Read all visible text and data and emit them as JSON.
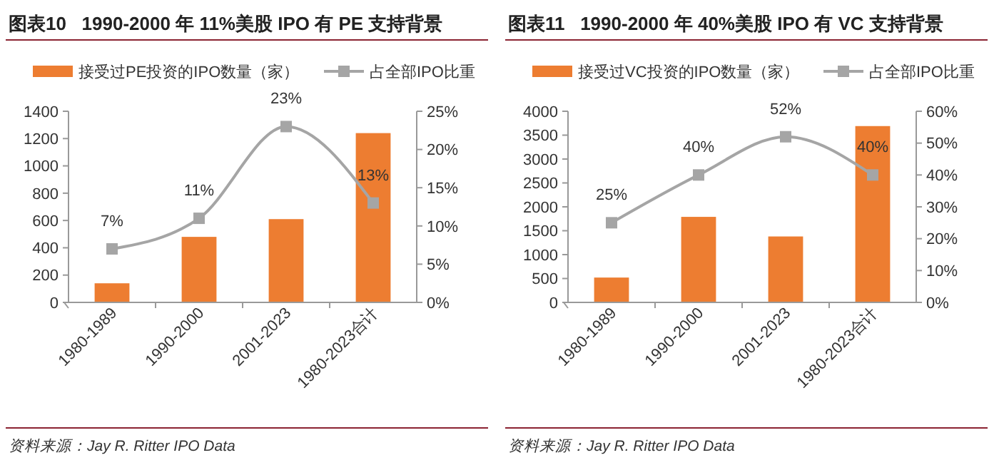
{
  "chart_data": [
    {
      "type": "bar",
      "title": "图表10   1990-2000 年 11%美股 IPO 有 PE 支持背景",
      "categories": [
        "1980-1989",
        "1990-2000",
        "2001-2023",
        "1980-2023合计"
      ],
      "series": [
        {
          "name": "接受过PE投资的IPO数量（家）",
          "color": "#ed7d31",
          "values": [
            140,
            480,
            610,
            1240
          ]
        },
        {
          "name": "占全部IPO比重",
          "type": "line",
          "axis": "y2",
          "color": "#a5a5a5",
          "values": [
            7,
            11,
            23,
            13
          ],
          "value_labels": [
            "7%",
            "11%",
            "23%",
            "13%"
          ]
        }
      ],
      "ylim": [
        0,
        1400
      ],
      "yticks": [
        0,
        200,
        400,
        600,
        800,
        1000,
        1200,
        1400
      ],
      "y2lim": [
        0,
        25
      ],
      "y2ticks": [
        {
          "value": 0,
          "label": "0%"
        },
        {
          "value": 5,
          "label": "5%"
        },
        {
          "value": 10,
          "label": "10%"
        },
        {
          "value": 15,
          "label": "15%"
        },
        {
          "value": 20,
          "label": "20%"
        },
        {
          "value": 25,
          "label": "25%"
        }
      ],
      "marker": "square",
      "legend": "top",
      "annotations": [
        "资料来源：Jay R. Ritter IPO Data"
      ]
    },
    {
      "type": "bar",
      "title": "图表11   1990-2000 年 40%美股 IPO 有 VC 支持背景",
      "categories": [
        "1980-1989",
        "1990-2000",
        "2001-2023",
        "1980-2023合计"
      ],
      "series": [
        {
          "name": "接受过VC投资的IPO数量（家）",
          "color": "#ed7d31",
          "values": [
            520,
            1790,
            1380,
            3690
          ]
        },
        {
          "name": "占全部IPO比重",
          "type": "line",
          "axis": "y2",
          "color": "#a5a5a5",
          "values": [
            25,
            40,
            52,
            40
          ],
          "value_labels": [
            "25%",
            "40%",
            "52%",
            "40%"
          ]
        }
      ],
      "ylim": [
        0,
        4000
      ],
      "yticks": [
        0,
        500,
        1000,
        1500,
        2000,
        2500,
        3000,
        3500,
        4000
      ],
      "y2lim": [
        0,
        60
      ],
      "y2ticks": [
        {
          "value": 0,
          "label": "0%"
        },
        {
          "value": 10,
          "label": "10%"
        },
        {
          "value": 20,
          "label": "20%"
        },
        {
          "value": 30,
          "label": "30%"
        },
        {
          "value": 40,
          "label": "40%"
        },
        {
          "value": 50,
          "label": "50%"
        },
        {
          "value": 60,
          "label": "60%"
        }
      ],
      "marker": "square",
      "legend": "top",
      "annotations": [
        "资料来源：Jay R. Ritter IPO Data"
      ]
    }
  ]
}
